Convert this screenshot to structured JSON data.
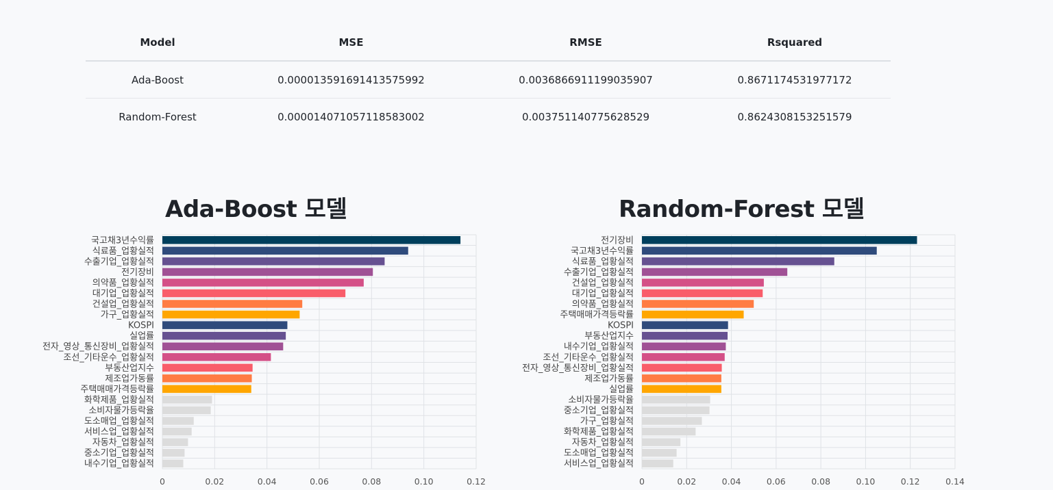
{
  "metrics_table": {
    "headers": [
      "Model",
      "MSE",
      "RMSE",
      "Rsquared"
    ],
    "rows": [
      [
        "Ada-Boost",
        "0.000013591691413575992",
        "0.0036866911199035907",
        "0.8671174531977172"
      ],
      [
        "Random-Forest",
        "0.000014071057118583002",
        "0.003751140775628529",
        "0.8624308153251579"
      ]
    ]
  },
  "charts": {
    "left_title": "Ada-Boost 모델",
    "right_title": "Random-Forest 모델"
  },
  "colors": {
    "palette": [
      "#003f5c",
      "#2f4b7c",
      "#665191",
      "#a05195",
      "#d45087",
      "#f95d6a",
      "#ff7c43",
      "#ffa600"
    ],
    "muted": "#dcdcdc",
    "grid": "#dfe2e6"
  },
  "chart_data": [
    {
      "type": "bar",
      "orientation": "horizontal",
      "title": "Ada-Boost 모델",
      "categories": [
        "국고채3년수익률",
        "식료품_업황실적",
        "수출기업_업황실적",
        "전기장비",
        "의약품_업황실적",
        "대기업_업황실적",
        "건설업_업황실적",
        "가구_업황실적",
        "KOSPI",
        "실업률",
        "전자_영상_통신장비_업황실적",
        "조선_기타운수_업황실적",
        "부동산업지수",
        "제조업가동률",
        "주택매매가격등락률",
        "화학제품_업황실적",
        "소비자물가등락율",
        "도소매업_업황실적",
        "서비스업_업황실적",
        "자동차_업황실적",
        "중소기업_업황실적",
        "내수기업_업황실적"
      ],
      "values": [
        0.114,
        0.094,
        0.085,
        0.0805,
        0.077,
        0.07,
        0.0535,
        0.0525,
        0.0478,
        0.0472,
        0.0462,
        0.0415,
        0.0345,
        0.0342,
        0.034,
        0.019,
        0.0185,
        0.012,
        0.0112,
        0.0098,
        0.0085,
        0.008
      ],
      "xlim": [
        0,
        0.12
      ],
      "xticks": [
        "0",
        "0.02",
        "0.04",
        "0.06",
        "0.08",
        "0.10",
        "0.12"
      ],
      "grid": true
    },
    {
      "type": "bar",
      "orientation": "horizontal",
      "title": "Random-Forest 모델",
      "categories": [
        "전기장비",
        "국고채3년수익률",
        "식료품_업황실적",
        "수출기업_업황실적",
        "건설업_업황실적",
        "대기업_업황실적",
        "의약품_업황실적",
        "주택매매가격등락률",
        "KOSPI",
        "부동산업지수",
        "내수기업_업황실적",
        "조선_기타운수_업황실적",
        "전자_영상_통신장비_업황실적",
        "제조업가동률",
        "실업률",
        "소비자물가등락율",
        "중소기업_업황실적",
        "가구_업황실적",
        "화학제품_업황실적",
        "자동차_업황실적",
        "도소매업_업황실적",
        "서비스업_업황실적"
      ],
      "values": [
        0.123,
        0.105,
        0.086,
        0.065,
        0.0545,
        0.054,
        0.05,
        0.0455,
        0.0385,
        0.0383,
        0.0375,
        0.037,
        0.0357,
        0.0355,
        0.0355,
        0.0305,
        0.0302,
        0.0268,
        0.024,
        0.0172,
        0.0155,
        0.014
      ],
      "xlim": [
        0,
        0.14
      ],
      "xticks": [
        "0",
        "0.02",
        "0.04",
        "0.06",
        "0.08",
        "0.10",
        "0.12",
        "0.14"
      ],
      "grid": true
    }
  ]
}
